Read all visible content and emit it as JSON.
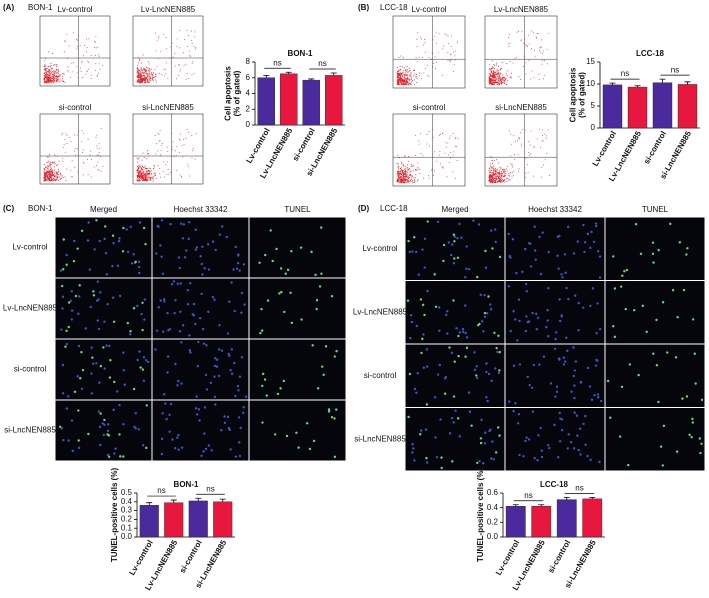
{
  "flow_panels": [
    {
      "label": "(A)",
      "cell": "BON-1",
      "plots": [
        "Lv-control",
        "Lv-LncNEN885",
        "si-control",
        "si-LncNEN885"
      ]
    },
    {
      "label": "(B)",
      "cell": "LCC-18",
      "plots": [
        "Lv-control",
        "Lv-LncNEN885",
        "si-control",
        "si-LncNEN885"
      ]
    }
  ],
  "image_panels": [
    {
      "label": "(C)",
      "cell": "BON-1",
      "columns": [
        "Merged",
        "Hoechst 33342",
        "TUNEL"
      ],
      "rows": [
        "Lv-control",
        "Lv-LncNEN885",
        "si-control",
        "si-LncNEN885"
      ]
    },
    {
      "label": "(D)",
      "cell": "LCC-18",
      "columns": [
        "Merged",
        "Hoechst 33342",
        "TUNEL"
      ],
      "rows": [
        "Lv-control",
        "Lv-LncNEN885",
        "si-control",
        "si-LncNEN885"
      ]
    }
  ],
  "chart_data": [
    {
      "type": "bar",
      "title": "BON-1",
      "y_label": [
        "Cell apoptosis",
        "(% of gated)"
      ],
      "categories": [
        "Lv-control",
        "Lv-LncNEN885",
        "si-control",
        "si-LncNEN885"
      ],
      "values": [
        6.0,
        6.5,
        5.7,
        6.3
      ],
      "errors": [
        0.3,
        0.2,
        0.15,
        0.3
      ],
      "colors": [
        "#4b2a9e",
        "#e8173d",
        "#4b2a9e",
        "#e8173d"
      ],
      "ylim": [
        0,
        8
      ],
      "yticks": [
        0,
        2,
        4,
        6,
        8
      ],
      "annotations": [
        "ns",
        "ns"
      ]
    },
    {
      "type": "bar",
      "title": "LCC-18",
      "y_label": [
        "Cell apoptosis",
        "(% of gated)"
      ],
      "categories": [
        "Lv-control",
        "Lv-LncNEN885",
        "si-control",
        "si-LncNEN885"
      ],
      "values": [
        9.8,
        9.3,
        10.3,
        9.9
      ],
      "errors": [
        0.4,
        0.3,
        0.8,
        0.6
      ],
      "colors": [
        "#4b2a9e",
        "#e8173d",
        "#4b2a9e",
        "#e8173d"
      ],
      "ylim": [
        0,
        15
      ],
      "yticks": [
        0,
        5,
        10,
        15
      ],
      "annotations": [
        "ns",
        "ns"
      ]
    },
    {
      "type": "bar",
      "title": "BON-1",
      "y_label": [
        "TUNEL-positive cells (%)"
      ],
      "categories": [
        "Lv-control",
        "Lv-LncNEN885",
        "si-control",
        "si-LncNEN885"
      ],
      "values": [
        0.36,
        0.39,
        0.41,
        0.4
      ],
      "errors": [
        0.03,
        0.03,
        0.03,
        0.03
      ],
      "colors": [
        "#4b2a9e",
        "#e8173d",
        "#4b2a9e",
        "#e8173d"
      ],
      "ylim": [
        0,
        0.5
      ],
      "yticks": [
        {
          "value": 0,
          "label": "0.0"
        },
        0.1,
        0.2,
        0.3,
        0.4,
        0.5
      ],
      "annotations": [
        "ns",
        "ns"
      ]
    },
    {
      "type": "bar",
      "title": "LCC-18",
      "y_label": [
        "TUNEL-positive cells (%)"
      ],
      "categories": [
        "Lv-control",
        "Lv-LncNEN885",
        "si-control",
        "si-LncNEN885"
      ],
      "values": [
        0.42,
        0.42,
        0.51,
        0.52
      ],
      "errors": [
        0.02,
        0.02,
        0.03,
        0.02
      ],
      "colors": [
        "#4b2a9e",
        "#e8173d",
        "#4b2a9e",
        "#e8173d"
      ],
      "ylim": [
        0,
        0.6
      ],
      "yticks": [
        {
          "value": 0,
          "label": "0.0"
        },
        0.2,
        0.4,
        0.6
      ],
      "annotations": [
        "ns",
        "ns"
      ]
    }
  ]
}
